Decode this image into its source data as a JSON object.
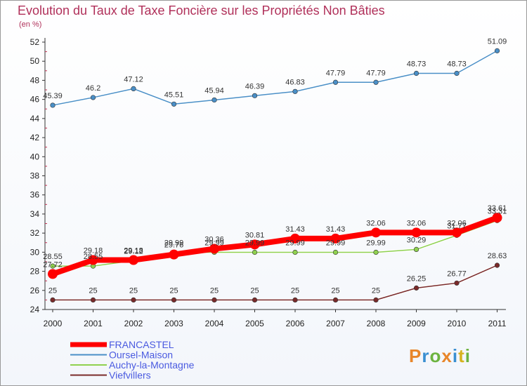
{
  "title": "Evolution du Taux de Taxe Foncière sur les Propriétés Non Bâties",
  "unit": "(en %)",
  "logo": {
    "text": "Proxiti",
    "colors": [
      "#e8862a",
      "#3a8fd1",
      "#6cb33f",
      "#e8862a",
      "#3a8fd1",
      "#d6b21e",
      "#6cb33f"
    ]
  },
  "chart_data": {
    "type": "line",
    "x": [
      "2000",
      "2001",
      "2002",
      "2003",
      "2004",
      "2005",
      "2006",
      "2007",
      "2008",
      "2009",
      "2010",
      "2011"
    ],
    "ylim": [
      24,
      52
    ],
    "yticks": [
      24,
      26,
      28,
      30,
      32,
      34,
      36,
      38,
      40,
      42,
      44,
      46,
      48,
      50,
      52
    ],
    "grid": false,
    "legend_position": "bottom-left",
    "series": [
      {
        "name": "FRANCASTEL",
        "color": "#ff0000",
        "values": [
          27.72,
          29.18,
          29.18,
          29.76,
          30.36,
          30.81,
          31.43,
          31.43,
          32.06,
          32.06,
          32.06,
          33.61
        ],
        "labels": [
          "27.72",
          "29.18",
          "29.18",
          "29.76",
          "30.36",
          "30.81",
          "31.43",
          "31.43",
          "32.06",
          "32.06",
          "32.06",
          "33.61"
        ]
      },
      {
        "name": "Oursel-Maison",
        "color": "#4a8fc7",
        "values": [
          45.39,
          46.2,
          47.12,
          45.51,
          45.94,
          46.39,
          46.83,
          47.79,
          47.79,
          48.73,
          48.73,
          51.09
        ],
        "labels": [
          "45.39",
          "46.2",
          "47.12",
          "45.51",
          "45.94",
          "46.39",
          "46.83",
          "47.79",
          "47.79",
          "48.73",
          "48.73",
          "51.09"
        ]
      },
      {
        "name": "Auchy-la-Montagne",
        "color": "#8fd14f",
        "values": [
          28.55,
          28.55,
          29.12,
          29.99,
          29.99,
          29.99,
          29.99,
          29.99,
          29.99,
          30.29,
          31.77,
          33.31
        ],
        "labels": [
          "28.55",
          "28.55",
          "29.12",
          "29.99",
          "29.99",
          "29.99",
          "29.99",
          "29.99",
          "29.99",
          "30.29",
          "31.77",
          "33.31"
        ]
      },
      {
        "name": "Viefvillers",
        "color": "#7a2a2a",
        "values": [
          25,
          25,
          25,
          25,
          25,
          25,
          25,
          25,
          25,
          26.25,
          26.77,
          28.63
        ],
        "labels": [
          "25",
          "25",
          "25",
          "25",
          "25",
          "25",
          "25",
          "25",
          "25",
          "26.25",
          "26.77",
          "28.63"
        ]
      }
    ]
  }
}
